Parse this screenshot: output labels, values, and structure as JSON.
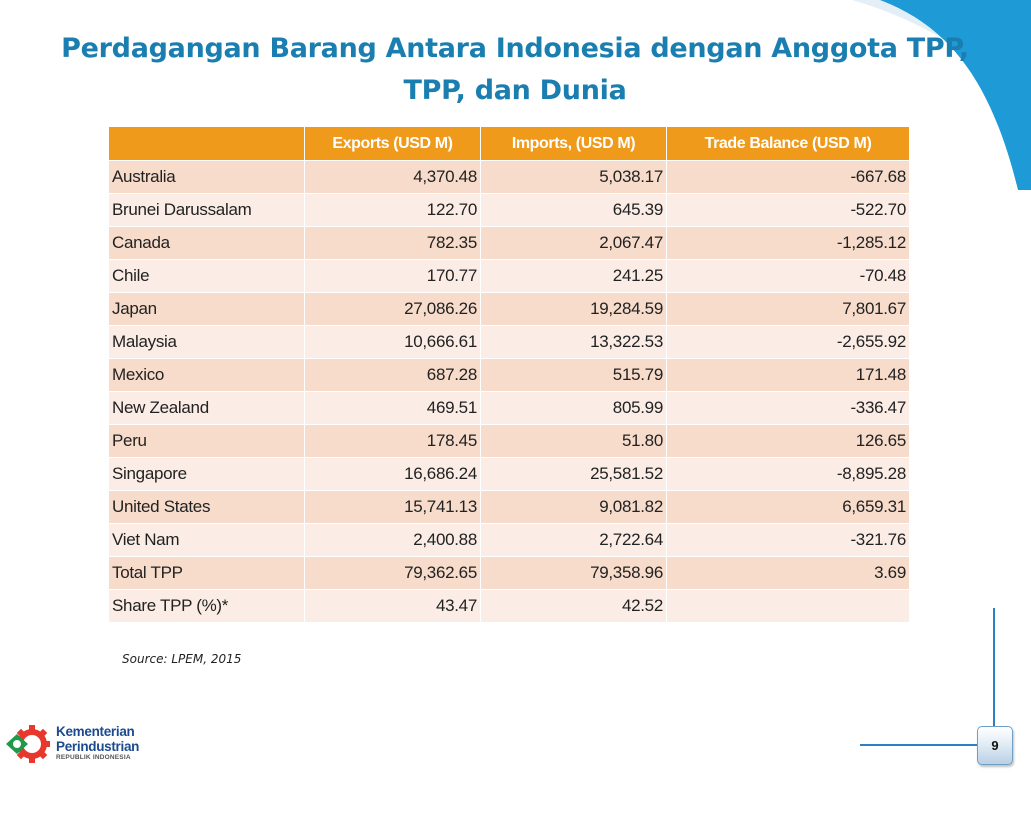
{
  "title": {
    "line1": "Perdagangan Barang Antara Indonesia dengan Anggota TPP,",
    "line2": "TPP, dan Dunia"
  },
  "table": {
    "headers": [
      "",
      "Exports (USD M)",
      "Imports, (USD M)",
      "Trade Balance (USD M)"
    ],
    "rows": [
      [
        "Australia",
        "4,370.48",
        "5,038.17",
        "-667.68"
      ],
      [
        "Brunei Darussalam",
        "122.70",
        "645.39",
        "-522.70"
      ],
      [
        "Canada",
        "782.35",
        "2,067.47",
        "-1,285.12"
      ],
      [
        "Chile",
        "170.77",
        "241.25",
        "-70.48"
      ],
      [
        "Japan",
        "27,086.26",
        "19,284.59",
        "7,801.67"
      ],
      [
        "Malaysia",
        "10,666.61",
        "13,322.53",
        "-2,655.92"
      ],
      [
        "Mexico",
        "687.28",
        "515.79",
        "171.48"
      ],
      [
        "New Zealand",
        "469.51",
        "805.99",
        "-336.47"
      ],
      [
        "Peru",
        "178.45",
        "51.80",
        "126.65"
      ],
      [
        "Singapore",
        "16,686.24",
        "25,581.52",
        "-8,895.28"
      ],
      [
        "United States",
        "15,741.13",
        "9,081.82",
        "6,659.31"
      ],
      [
        "Viet Nam",
        "2,400.88",
        "2,722.64",
        "-321.76"
      ],
      [
        "Total TPP",
        "79,362.65",
        "79,358.96",
        "3.69"
      ],
      [
        "Share TPP (%)*",
        "43.47",
        "42.52",
        ""
      ]
    ]
  },
  "source": "Source: LPEM, 2015",
  "logo": {
    "name_line1": "Kementerian",
    "name_line2": "Perindustrian",
    "subtitle": "REPUBLIK INDONESIA"
  },
  "page_number": "9",
  "colors": {
    "title": "#1a7fb0",
    "header_bg": "#ef9a1a",
    "row_odd": "#f7dccb",
    "row_even": "#fbede5",
    "accent_blue": "#1e9ad6"
  }
}
